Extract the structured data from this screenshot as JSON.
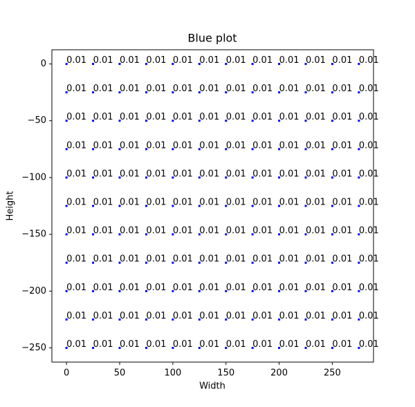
{
  "chart_data": {
    "type": "scatter",
    "title": "Blue plot",
    "x_label": "Width",
    "y_label": "Height",
    "color": "blue",
    "x": [
      0,
      25,
      50,
      75,
      100,
      125,
      150,
      175,
      200,
      225,
      250,
      275,
      0,
      25,
      50,
      75,
      100,
      125,
      150,
      175,
      200,
      225,
      250,
      275,
      0,
      25,
      50,
      75,
      100,
      125,
      150,
      175,
      200,
      225,
      250,
      275,
      0,
      25,
      50,
      75,
      100,
      125,
      150,
      175,
      200,
      225,
      250,
      275,
      0,
      25,
      50,
      75,
      100,
      125,
      150,
      175,
      200,
      225,
      250,
      275,
      0,
      25,
      50,
      75,
      100,
      125,
      150,
      175,
      200,
      225,
      250,
      275,
      0,
      25,
      50,
      75,
      100,
      125,
      150,
      175,
      200,
      225,
      250,
      275,
      0,
      25,
      50,
      75,
      100,
      125,
      150,
      175,
      200,
      225,
      250,
      275,
      0,
      25,
      50,
      75,
      100,
      125,
      150,
      175,
      200,
      225,
      250,
      275,
      0,
      25,
      50,
      75,
      100,
      125,
      150,
      175,
      200,
      225,
      250,
      275,
      0,
      25,
      50,
      75,
      100,
      125,
      150,
      175,
      200,
      225,
      250,
      275
    ],
    "y": [
      0,
      0,
      0,
      0,
      0,
      0,
      0,
      0,
      0,
      0,
      0,
      0,
      -25,
      -25,
      -25,
      -25,
      -25,
      -25,
      -25,
      -25,
      -25,
      -25,
      -25,
      -25,
      -50,
      -50,
      -50,
      -50,
      -50,
      -50,
      -50,
      -50,
      -50,
      -50,
      -50,
      -50,
      -75,
      -75,
      -75,
      -75,
      -75,
      -75,
      -75,
      -75,
      -75,
      -75,
      -75,
      -75,
      -100,
      -100,
      -100,
      -100,
      -100,
      -100,
      -100,
      -100,
      -100,
      -100,
      -100,
      -100,
      -125,
      -125,
      -125,
      -125,
      -125,
      -125,
      -125,
      -125,
      -125,
      -125,
      -125,
      -125,
      -150,
      -150,
      -150,
      -150,
      -150,
      -150,
      -150,
      -150,
      -150,
      -150,
      -150,
      -150,
      -175,
      -175,
      -175,
      -175,
      -175,
      -175,
      -175,
      -175,
      -175,
      -175,
      -175,
      -175,
      -200,
      -200,
      -200,
      -200,
      -200,
      -200,
      -200,
      -200,
      -200,
      -200,
      -200,
      -200,
      -225,
      -225,
      -225,
      -225,
      -225,
      -225,
      -225,
      -225,
      -225,
      -225,
      -225,
      -225,
      -250,
      -250,
      -250,
      -250,
      -250,
      -250,
      -250,
      -250,
      -250,
      -250,
      -250,
      -250
    ],
    "values": [
      0.01,
      0.01,
      0.01,
      0.01,
      0.01,
      0.01,
      0.01,
      0.01,
      0.01,
      0.01,
      0.01,
      0.01,
      0.01,
      0.01,
      0.01,
      0.01,
      0.01,
      0.01,
      0.01,
      0.01,
      0.01,
      0.01,
      0.01,
      0.01,
      0.01,
      0.01,
      0.01,
      0.01,
      0.01,
      0.01,
      0.01,
      0.01,
      0.01,
      0.01,
      0.01,
      0.01,
      0.01,
      0.01,
      0.01,
      0.01,
      0.01,
      0.01,
      0.01,
      0.01,
      0.01,
      0.01,
      0.01,
      0.01,
      0.01,
      0.01,
      0.01,
      0.01,
      0.01,
      0.01,
      0.01,
      0.01,
      0.01,
      0.01,
      0.01,
      0.01,
      0.01,
      0.01,
      0.01,
      0.01,
      0.01,
      0.01,
      0.01,
      0.01,
      0.01,
      0.01,
      0.01,
      0.01,
      0.01,
      0.01,
      0.01,
      0.01,
      0.01,
      0.01,
      0.01,
      0.01,
      0.01,
      0.01,
      0.01,
      0.01,
      0.01,
      0.01,
      0.01,
      0.01,
      0.01,
      0.01,
      0.01,
      0.01,
      0.01,
      0.01,
      0.01,
      0.01,
      0.01,
      0.01,
      0.01,
      0.01,
      0.01,
      0.01,
      0.01,
      0.01,
      0.01,
      0.01,
      0.01,
      0.01,
      0.01,
      0.01,
      0.01,
      0.01,
      0.01,
      0.01,
      0.01,
      0.01,
      0.01,
      0.01,
      0.01,
      0.01,
      0.01,
      0.01,
      0.01,
      0.01,
      0.01,
      0.01,
      0.01,
      0.01,
      0.01,
      0.01,
      0.01,
      0.01
    ],
    "xlim": [
      -13.75,
      288.75
    ],
    "ylim": [
      -262.5,
      12.5
    ],
    "xticks": [
      0,
      50,
      100,
      150,
      200,
      250
    ],
    "yticks": [
      0,
      {
        "value": -50,
        "label": "−50"
      },
      {
        "value": -100,
        "label": "−100"
      },
      {
        "value": -150,
        "label": "−150"
      },
      {
        "value": -200,
        "label": "−200"
      },
      {
        "value": -250,
        "label": "−250"
      }
    ]
  }
}
